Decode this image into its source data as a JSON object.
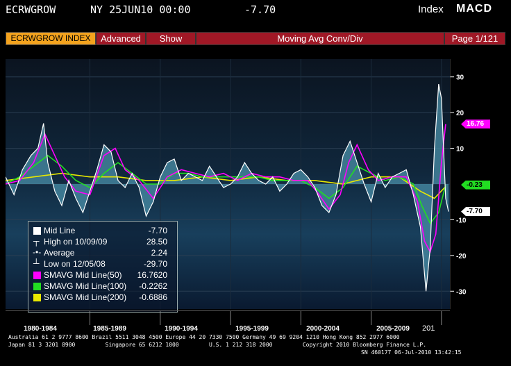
{
  "header": {
    "ticker": "ECRWGROW",
    "datetime": "NY 25JUN10 00:00",
    "last_value": "-7.70",
    "index_label": "Index",
    "study": "MACD"
  },
  "toolbar": {
    "ticker_button": "ECRWGROW INDEX",
    "advanced_button": "Advanced",
    "show_button": "Show",
    "title": "Moving Avg Conv/Div",
    "page": "Page 1/121"
  },
  "axis": {
    "y_ticks": [
      "30",
      "20",
      "10",
      "-10",
      "-20",
      "-30"
    ],
    "right_tags": {
      "magenta": "16.76",
      "green": "-0.23",
      "white": "-7.70"
    },
    "x_labels": [
      "1980-1984",
      "1985-1989",
      "1990-1994",
      "1995-1999",
      "2000-2004",
      "2005-2009",
      "201"
    ]
  },
  "legend": {
    "items": [
      {
        "label": "Mid Line",
        "value": "-7.70",
        "icon": "white-square"
      },
      {
        "label": "High on 10/09/09",
        "value": "28.50",
        "icon": "high-marker"
      },
      {
        "label": "Average",
        "value": "2.24",
        "icon": "average-marker"
      },
      {
        "label": "Low on 12/05/08",
        "value": "-29.70",
        "icon": "low-marker"
      },
      {
        "label": "SMAVG Mid Line(50)",
        "value": "16.7620",
        "icon": "magenta-square"
      },
      {
        "label": "SMAVG Mid Line(100)",
        "value": "-0.2262",
        "icon": "green-square"
      },
      {
        "label": "SMAVG Mid Line(200)",
        "value": "-0.6886",
        "icon": "yellow-square"
      }
    ]
  },
  "colors": {
    "mid_line": "#ffffff",
    "sma50": "#ff00ff",
    "sma100": "#22dd22",
    "sma200": "#e8e800",
    "area": "#4a8fa8",
    "toolbar_red": "#a01826",
    "ticker_orange": "#f4a31e"
  },
  "footer": {
    "line1": "Australia 61 2 9777 8600 Brazil 5511 3048 4500 Europe 44 20 7330 7500 Germany 49 69 9204 1210 Hong Kong 852 2977 6000",
    "line2": "Japan 81 3 3201 8900         Singapore 65 6212 1000         U.S. 1 212 318 2000         Copyright 2010 Bloomberg Finance L.P.",
    "line3": "SN 460177 06-Jul-2010 13:42:15"
  },
  "chart_data": {
    "type": "line",
    "ylim": [
      -35,
      35
    ],
    "xlim": [
      1979,
      2010.6
    ],
    "series": [
      {
        "name": "Mid Line",
        "x": [
          1979,
          1979.6,
          1980.2,
          1980.8,
          1981.3,
          1981.7,
          1982.0,
          1982.5,
          1983.0,
          1983.5,
          1984.0,
          1984.5,
          1985.0,
          1985.5,
          1986.0,
          1986.5,
          1987.0,
          1987.5,
          1988.0,
          1988.5,
          1989.0,
          1989.5,
          1990.0,
          1990.5,
          1991.0,
          1991.5,
          1992.0,
          1992.5,
          1993.0,
          1993.5,
          1994.0,
          1994.5,
          1995.0,
          1995.5,
          1996.0,
          1996.5,
          1997.0,
          1997.5,
          1998.0,
          1998.5,
          1999.0,
          1999.5,
          2000.0,
          2000.5,
          2001.0,
          2001.5,
          2002.0,
          2002.5,
          2003.0,
          2003.5,
          2004.0,
          2004.5,
          2005.0,
          2005.5,
          2006.0,
          2006.5,
          2007.0,
          2007.5,
          2008.0,
          2008.5,
          2008.9,
          2009.2,
          2009.5,
          2009.8,
          2010.0,
          2010.3,
          2010.5
        ],
        "values": [
          2,
          -3,
          4,
          8,
          10,
          17,
          6,
          -2,
          -6,
          1,
          -4,
          -8,
          -2,
          4,
          11,
          9,
          1,
          -1,
          3,
          -1,
          -9,
          -5,
          2,
          6,
          7,
          1,
          3,
          2,
          1,
          5,
          2,
          -1,
          0,
          2,
          6,
          3,
          1,
          0,
          2,
          -2,
          0,
          3,
          4,
          2,
          -1,
          -6,
          -8,
          -3,
          8,
          12,
          6,
          0,
          -5,
          3,
          -1,
          2,
          3,
          4,
          -3,
          -12,
          -30,
          -18,
          10,
          28,
          24,
          -4,
          -7.7
        ]
      },
      {
        "name": "SMAVG Mid Line(50)",
        "x": [
          1979,
          1980,
          1981,
          1981.8,
          1982.5,
          1983.2,
          1984,
          1985,
          1986,
          1986.8,
          1987.5,
          1988.5,
          1989.5,
          1990.5,
          1991.5,
          1992.5,
          1993.5,
          1994.5,
          1995.5,
          1996.5,
          1997.5,
          1998.5,
          1999.5,
          2000.5,
          2001.3,
          2002.0,
          2002.8,
          2003.4,
          2004.0,
          2004.8,
          2005.5,
          2006.5,
          2007.5,
          2008.3,
          2008.8,
          2009.2,
          2009.6,
          2010.0,
          2010.3
        ],
        "values": [
          0,
          1,
          6,
          14,
          8,
          2,
          -2,
          -3,
          8,
          10,
          4,
          1,
          -4,
          2,
          4,
          3,
          2,
          3,
          1,
          3,
          2,
          2,
          1,
          1,
          -3,
          -7,
          -3,
          6,
          11,
          4,
          1,
          2,
          2,
          -5,
          -16,
          -19,
          -14,
          6,
          16.76
        ]
      },
      {
        "name": "SMAVG Mid Line(100)",
        "x": [
          1979,
          1980,
          1981,
          1982,
          1983,
          1984,
          1985,
          1986,
          1987,
          1988,
          1989,
          1990,
          1991,
          1992,
          1993,
          1994,
          1995,
          1996,
          1997,
          1998,
          1999,
          2000,
          2001,
          2002,
          2003,
          2004,
          2005,
          2006,
          2007,
          2008,
          2008.6,
          2009.2,
          2009.8,
          2010.3
        ],
        "values": [
          0,
          2,
          5,
          8,
          5,
          1,
          -1,
          3,
          6,
          3,
          0,
          0,
          3,
          3,
          2,
          2,
          2,
          2,
          2,
          1,
          1,
          1,
          -1,
          -4,
          -1,
          5,
          3,
          1,
          2,
          0,
          -6,
          -11,
          -8,
          -0.23
        ]
      },
      {
        "name": "SMAVG Mid Line(200)",
        "x": [
          1979,
          1981,
          1983,
          1985,
          1987,
          1989,
          1991,
          1993,
          1995,
          1997,
          1999,
          2001,
          2003,
          2005,
          2007,
          2008.5,
          2009.5,
          2010.3
        ],
        "values": [
          1,
          2,
          3,
          2,
          2,
          1,
          1,
          2,
          1,
          2,
          1,
          1,
          0,
          2,
          2,
          -2,
          -4,
          -0.69
        ]
      }
    ]
  }
}
